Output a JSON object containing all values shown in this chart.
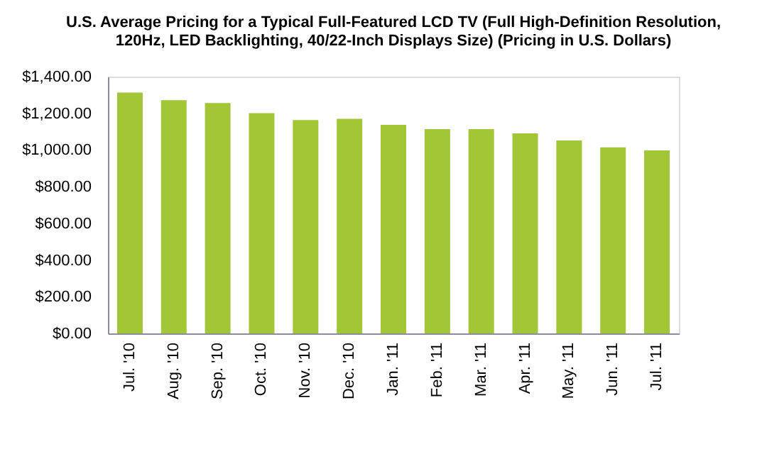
{
  "chart_data": {
    "type": "bar",
    "title": [
      "U.S. Average Pricing for a Typical Full-Featured LCD TV (Full High-Definition Resolution,",
      "120Hz, LED Backlighting, 40/22-Inch Displays Size) (Pricing in U.S. Dollars)"
    ],
    "categories": [
      "Jul. '10",
      "Aug. '10",
      "Sep. '10",
      "Oct. '10",
      "Nov. '10",
      "Dec. '10",
      "Jan. '11",
      "Feb. '11",
      "Mar. '11",
      "Apr. '11",
      "May. '11",
      "Jun. '11",
      "Jul. '11"
    ],
    "values": [
      1313,
      1271,
      1256,
      1201,
      1163,
      1170,
      1137,
      1114,
      1114,
      1091,
      1052,
      1014,
      998
    ],
    "color": "#a2c636",
    "ylim": [
      0,
      1400
    ],
    "yticks": [
      {
        "value": 0,
        "label": "$0.00"
      },
      {
        "value": 200,
        "label": "$200.00"
      },
      {
        "value": 400,
        "label": "$400.00"
      },
      {
        "value": 600,
        "label": "$600.00"
      },
      {
        "value": 800,
        "label": "$800.00"
      },
      {
        "value": 1000,
        "label": "$1,000.00"
      },
      {
        "value": 1200,
        "label": "$1,200.00"
      },
      {
        "value": 1400,
        "label": "$1,400.00"
      }
    ],
    "grid": false
  }
}
